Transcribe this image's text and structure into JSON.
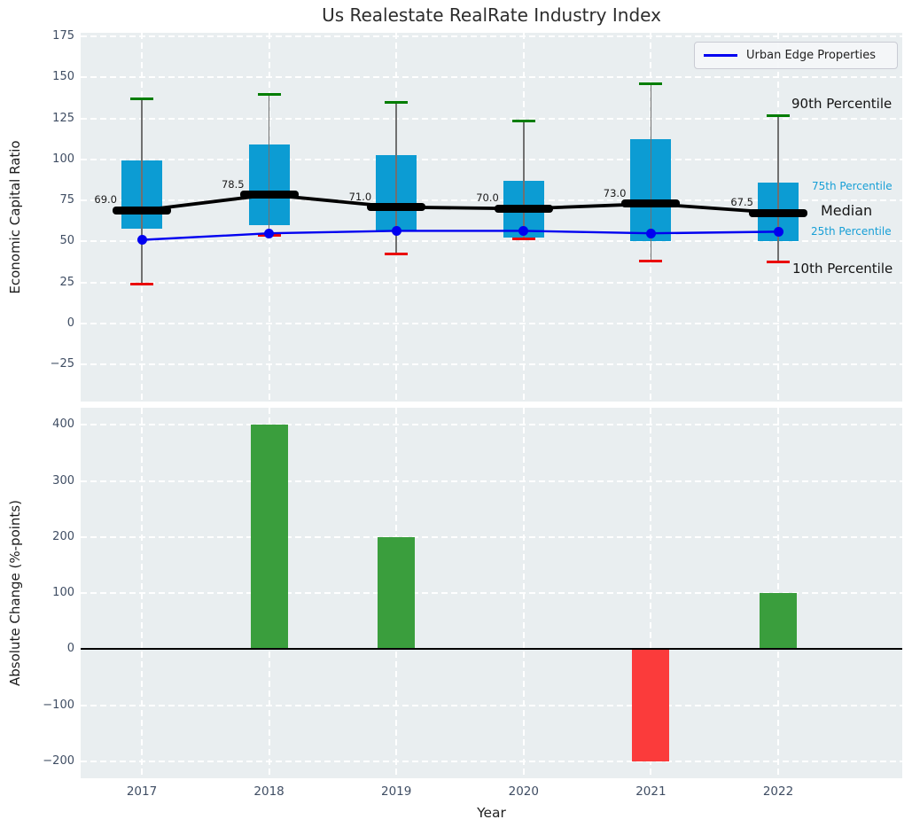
{
  "figure": {
    "title": "Us Realestate RealRate Industry Index"
  },
  "legend": {
    "label": "Urban Edge Properties"
  },
  "colors": {
    "axes_bg": "#e9eef0",
    "grid": "#ffffff",
    "tick_text": "#3f4d63",
    "box_fill": "#0c9cd3",
    "whisker": "#707070",
    "cap_high": "#007d00",
    "cap_low": "#ea0606",
    "median_line": "#000000",
    "company_line": "#0000f0",
    "bar_positive": "#3a9e3d",
    "bar_negative": "#fb3b3b",
    "cyan_label": "#179fd6",
    "dark_label": "#141414"
  },
  "chart_data": [
    {
      "type": "boxplot-with-line",
      "title": "Us Realestate RealRate Industry Index",
      "ylabel": "Economic Capital Ratio",
      "categories": [
        "2017",
        "2018",
        "2019",
        "2020",
        "2021",
        "2022"
      ],
      "yticks": [
        175,
        150,
        125,
        100,
        75,
        50,
        25,
        0,
        -25
      ],
      "ylim": [
        -47.6,
        177.3
      ],
      "grid": "white-dashed",
      "legend": {
        "label": "Urban Edge Properties",
        "position": "upper right"
      },
      "series": {
        "p90": [
          137,
          139.5,
          135,
          123.5,
          146,
          127
        ],
        "p75": [
          99.5,
          109,
          102.5,
          87,
          112.5,
          86
        ],
        "median": [
          69.0,
          78.5,
          71.0,
          70.0,
          73.0,
          67.5
        ],
        "p25": [
          58,
          60,
          56.5,
          52.5,
          50,
          50.5
        ],
        "p10": [
          24,
          54,
          42.5,
          51.5,
          38,
          37.5
        ],
        "urban_edge_properties": [
          51,
          55,
          56.5,
          56.5,
          55,
          56
        ]
      },
      "median_annotations": [
        "69.0",
        "78.5",
        "71.0",
        "70.0",
        "73.0",
        "67.5"
      ],
      "side_labels": [
        {
          "text": "90th Percentile",
          "tone": "dark",
          "size": 15,
          "x": 893,
          "y": 119
        },
        {
          "text": "75th Percentile",
          "tone": "cyan",
          "size": 12,
          "x": 916,
          "y": 212
        },
        {
          "text": "Median",
          "tone": "dark",
          "size": 16,
          "x": 926,
          "y": 240
        },
        {
          "text": "25th Percentile",
          "tone": "cyan",
          "size": 12,
          "x": 915,
          "y": 263
        },
        {
          "text": "10th Percentile",
          "tone": "dark",
          "size": 15,
          "x": 894,
          "y": 305
        }
      ]
    },
    {
      "type": "bar",
      "ylabel": "Absolute Change (%-points)",
      "xlabel": "Year",
      "categories": [
        "2017",
        "2018",
        "2019",
        "2020",
        "2021",
        "2022"
      ],
      "values": [
        0,
        400,
        200,
        0,
        -200,
        100
      ],
      "yticks": [
        400,
        300,
        200,
        100,
        0,
        -100,
        -200
      ],
      "ylim": [
        -230,
        430.5
      ],
      "zero_line": true,
      "grid": "white-dashed"
    }
  ]
}
